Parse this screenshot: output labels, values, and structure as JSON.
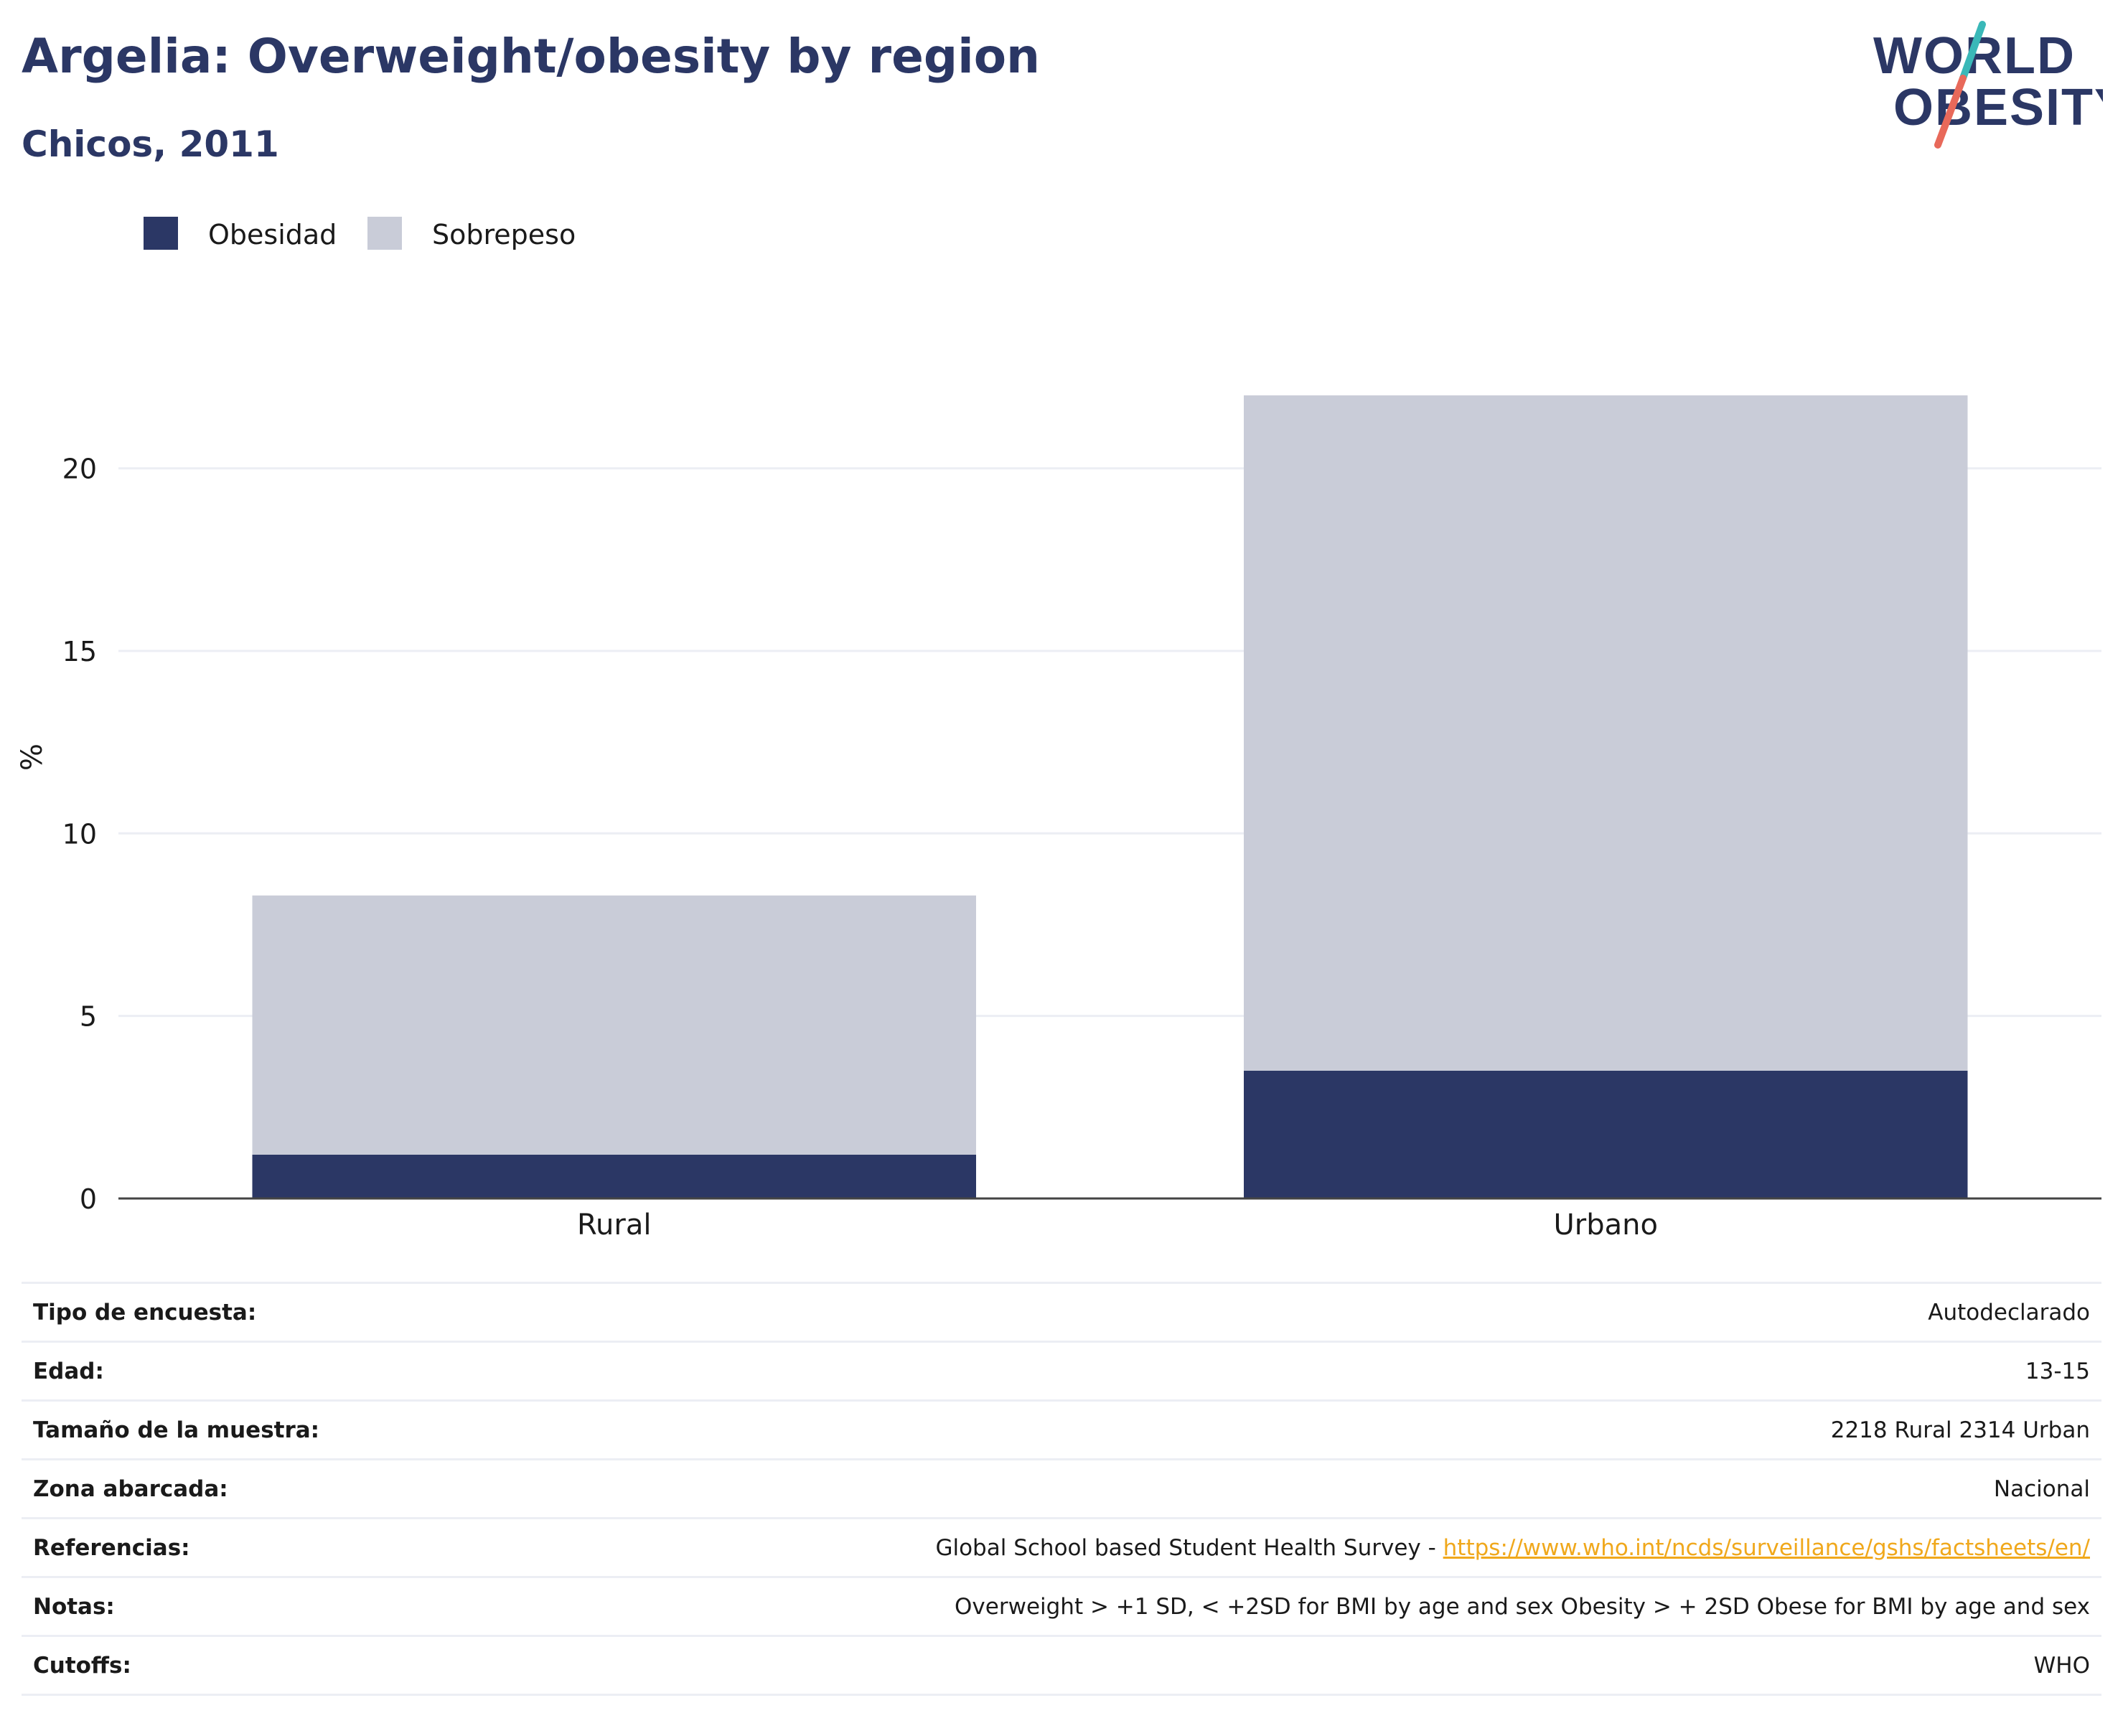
{
  "header": {
    "title": "Argelia: Overweight/obesity by region",
    "subtitle": "Chicos, 2011"
  },
  "logo": {
    "line1": "WORLD",
    "line2": "OBESITY",
    "accent_teal": "#3ab8b8",
    "accent_coral": "#e8695a",
    "text_color": "#2b3765"
  },
  "colors": {
    "obesidad": "#2b3765",
    "sobrepeso": "#c9ccd8",
    "grid": "#eceef4",
    "axis": "#444444"
  },
  "chart_data": {
    "type": "bar",
    "stacked": true,
    "categories": [
      "Rural",
      "Urbano"
    ],
    "series": [
      {
        "name": "Obesidad",
        "values": [
          1.2,
          3.5
        ]
      },
      {
        "name": "Sobrepeso",
        "values": [
          7.1,
          18.5
        ]
      }
    ],
    "ylabel": "%",
    "xlabel": "",
    "ylim": [
      0,
      23
    ],
    "yticks": [
      0,
      5,
      10,
      15,
      20
    ],
    "grid": true,
    "legend_position": "top-left"
  },
  "info": {
    "rows": [
      {
        "label": "Tipo de encuesta:",
        "value": "Autodeclarado"
      },
      {
        "label": "Edad:",
        "value": "13-15"
      },
      {
        "label": "Tamaño de la muestra:",
        "value": "2218 Rural 2314 Urban"
      },
      {
        "label": "Zona abarcada:",
        "value": "Nacional"
      },
      {
        "label": "Referencias:",
        "value": "Global School based Student Health Survey - ",
        "link": "https://www.who.int/ncds/surveillance/gshs/factsheets/en/"
      },
      {
        "label": "Notas:",
        "value": "Overweight > +1 SD, < +2SD for BMI by age and sex Obesity > + 2SD Obese for BMI by age and sex"
      },
      {
        "label": "Cutoffs:",
        "value": "WHO"
      }
    ]
  }
}
